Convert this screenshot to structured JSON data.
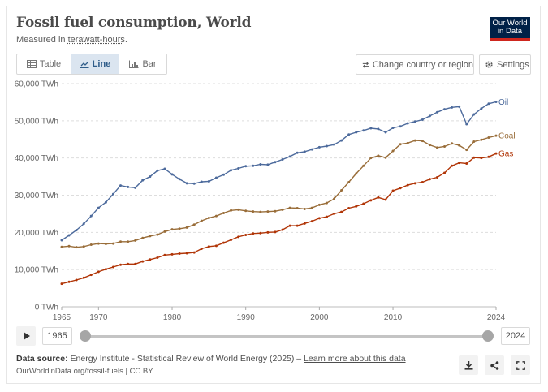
{
  "header": {
    "title": "Fossil fuel consumption, World",
    "subtitle_prefix": "Measured in ",
    "subtitle_unit": "terawatt-hours",
    "subtitle_suffix": ".",
    "logo_line1": "Our World",
    "logo_line2": "in Data"
  },
  "tabs": [
    {
      "label": "Table",
      "icon": "table-icon"
    },
    {
      "label": "Line",
      "icon": "line-chart-icon",
      "active": true
    },
    {
      "label": "Bar",
      "icon": "bar-chart-icon"
    }
  ],
  "controls": {
    "change_country": "Change country or region",
    "settings": "Settings"
  },
  "timeline": {
    "start_year": "1965",
    "end_year": "2024"
  },
  "footer": {
    "source_label": "Data source:",
    "source_text": "Energy Institute - Statistical Review of World Energy (2025) – ",
    "learn_more": "Learn more about this data",
    "license": "OurWorldinData.org/fossil-fuels | CC BY"
  },
  "colors": {
    "oil": "#4c6a9c",
    "coal": "#996d39",
    "gas": "#b13507"
  },
  "chart_data": {
    "type": "line",
    "title": "Fossil fuel consumption, World",
    "ylabel": "TWh",
    "ylim": [
      0,
      60000
    ],
    "yticks": [
      {
        "value": 0,
        "label": "0 TWh"
      },
      {
        "value": 10000,
        "label": "10,000 TWh"
      },
      {
        "value": 20000,
        "label": "20,000 TWh"
      },
      {
        "value": 30000,
        "label": "30,000 TWh"
      },
      {
        "value": 40000,
        "label": "40,000 TWh"
      },
      {
        "value": 50000,
        "label": "50,000 TWh"
      },
      {
        "value": 60000,
        "label": "60,000 TWh"
      }
    ],
    "xticks": [
      {
        "value": 1965,
        "label": "1965"
      },
      {
        "value": 1970,
        "label": "1970"
      },
      {
        "value": 1980,
        "label": "1980"
      },
      {
        "value": 1990,
        "label": "1990"
      },
      {
        "value": 2000,
        "label": "2000"
      },
      {
        "value": 2010,
        "label": "2010"
      },
      {
        "value": 2024,
        "label": "2024"
      }
    ],
    "xlim": [
      1965,
      2024
    ],
    "x": [
      1965,
      1966,
      1967,
      1968,
      1969,
      1970,
      1971,
      1972,
      1973,
      1974,
      1975,
      1976,
      1977,
      1978,
      1979,
      1980,
      1981,
      1982,
      1983,
      1984,
      1985,
      1986,
      1987,
      1988,
      1989,
      1990,
      1991,
      1992,
      1993,
      1994,
      1995,
      1996,
      1997,
      1998,
      1999,
      2000,
      2001,
      2002,
      2003,
      2004,
      2005,
      2006,
      2007,
      2008,
      2009,
      2010,
      2011,
      2012,
      2013,
      2014,
      2015,
      2016,
      2017,
      2018,
      2019,
      2020,
      2021,
      2022,
      2023,
      2024
    ],
    "series": [
      {
        "name": "Oil",
        "values": [
          17900,
          19200,
          20600,
          22300,
          24400,
          26600,
          28100,
          30300,
          32600,
          32200,
          32000,
          34000,
          35000,
          36600,
          37100,
          35600,
          34300,
          33200,
          33100,
          33600,
          33700,
          34700,
          35500,
          36700,
          37200,
          37800,
          37900,
          38300,
          38200,
          38900,
          39600,
          40400,
          41400,
          41700,
          42300,
          42900,
          43200,
          43600,
          44700,
          46300,
          46900,
          47400,
          48000,
          47800,
          46900,
          48100,
          48500,
          49300,
          49800,
          50300,
          51300,
          52300,
          53100,
          53600,
          53800,
          49100,
          51700,
          53300,
          54600,
          55100
        ]
      },
      {
        "name": "Coal",
        "values": [
          16100,
          16300,
          16000,
          16200,
          16700,
          17000,
          16900,
          17000,
          17500,
          17500,
          17800,
          18500,
          19000,
          19400,
          20200,
          20800,
          21000,
          21300,
          22100,
          23100,
          23900,
          24400,
          25200,
          25900,
          26100,
          25800,
          25600,
          25500,
          25600,
          25700,
          26100,
          26600,
          26500,
          26300,
          26600,
          27400,
          27900,
          29000,
          31300,
          33500,
          35800,
          37900,
          40000,
          40600,
          40100,
          41900,
          43700,
          44000,
          44700,
          44600,
          43500,
          42800,
          43100,
          43900,
          43400,
          42200,
          44400,
          44900,
          45500,
          46000
        ]
      },
      {
        "name": "Gas",
        "values": [
          6200,
          6700,
          7200,
          7800,
          8600,
          9400,
          10100,
          10700,
          11300,
          11500,
          11500,
          12200,
          12700,
          13200,
          13900,
          14100,
          14300,
          14400,
          14600,
          15600,
          16200,
          16400,
          17200,
          18000,
          18800,
          19300,
          19700,
          19800,
          20000,
          20100,
          20700,
          21800,
          21800,
          22400,
          23000,
          23800,
          24200,
          25000,
          25500,
          26500,
          27000,
          27700,
          28600,
          29400,
          28800,
          31200,
          31900,
          32700,
          33200,
          33500,
          34300,
          34800,
          36000,
          37900,
          38700,
          38500,
          40100,
          40000,
          40300,
          41200
        ]
      }
    ]
  }
}
